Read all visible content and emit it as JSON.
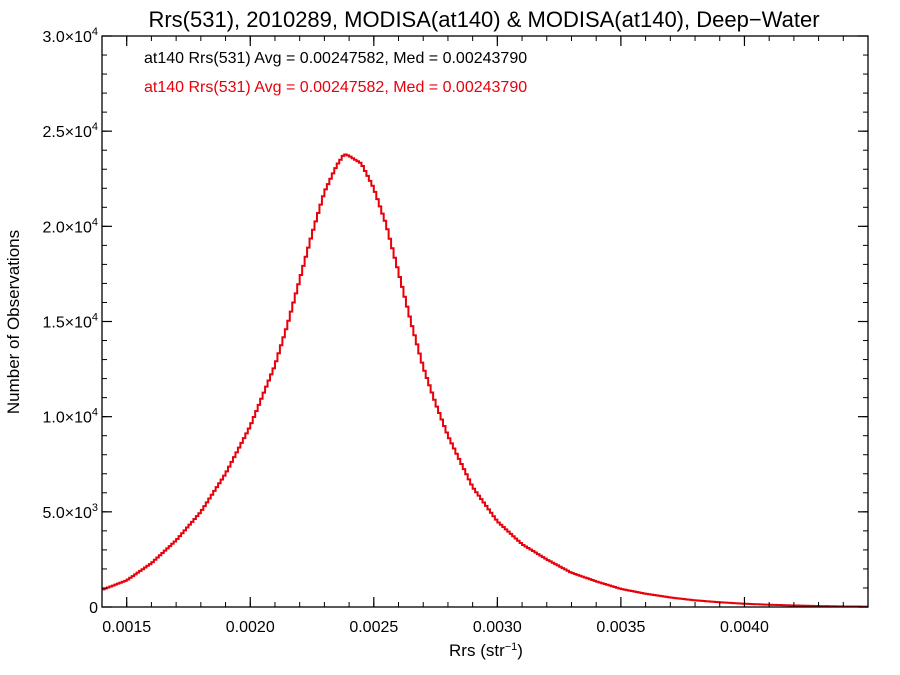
{
  "chart_data": {
    "type": "histogram",
    "title": "Rrs(531), 2010289, MODISA(at140) & MODISA(at140), Deep−Water",
    "xlabel": {
      "main": "Rrs (str",
      "sup": "−1",
      "close": ")"
    },
    "ylabel": "Number of Observations",
    "xlim": [
      0.0014,
      0.0045
    ],
    "ylim": [
      0,
      30000
    ],
    "x_ticks": [
      {
        "value": 0.0015,
        "label": "0.0015"
      },
      {
        "value": 0.002,
        "label": "0.0020"
      },
      {
        "value": 0.0025,
        "label": "0.0025"
      },
      {
        "value": 0.003,
        "label": "0.0030"
      },
      {
        "value": 0.0035,
        "label": "0.0035"
      },
      {
        "value": 0.004,
        "label": "0.0040"
      }
    ],
    "y_ticks": [
      {
        "value": 0,
        "mant": "0",
        "exp": ""
      },
      {
        "value": 5000,
        "mant": "5.0×10",
        "exp": "3"
      },
      {
        "value": 10000,
        "mant": "1.0×10",
        "exp": "4"
      },
      {
        "value": 15000,
        "mant": "1.5×10",
        "exp": "4"
      },
      {
        "value": 20000,
        "mant": "2.0×10",
        "exp": "4"
      },
      {
        "value": 25000,
        "mant": "2.5×10",
        "exp": "4"
      },
      {
        "value": 30000,
        "mant": "3.0×10",
        "exp": "4"
      }
    ],
    "legend": [
      {
        "text": "at140 Rrs(531) Avg = 0.00247582, Med = 0.00243790",
        "color": "#000000"
      },
      {
        "text": "at140 Rrs(531) Avg = 0.00247582, Med = 0.00243790",
        "color": "#e8000b"
      }
    ],
    "series": [
      {
        "color": "#e8000b",
        "points": [
          [
            0.0014,
            900
          ],
          [
            0.0015,
            1400
          ],
          [
            0.0016,
            2300
          ],
          [
            0.0017,
            3500
          ],
          [
            0.0018,
            5000
          ],
          [
            0.0019,
            7000
          ],
          [
            0.002,
            9500
          ],
          [
            0.0021,
            12700
          ],
          [
            0.00215,
            14800
          ],
          [
            0.0022,
            17200
          ],
          [
            0.00225,
            19600
          ],
          [
            0.0023,
            21800
          ],
          [
            0.00235,
            23200
          ],
          [
            0.00238,
            23800
          ],
          [
            0.0024,
            23700
          ],
          [
            0.00245,
            23300
          ],
          [
            0.0025,
            22000
          ],
          [
            0.00255,
            20100
          ],
          [
            0.0026,
            17600
          ],
          [
            0.00265,
            15000
          ],
          [
            0.0027,
            12600
          ],
          [
            0.00275,
            10700
          ],
          [
            0.0028,
            9000
          ],
          [
            0.0029,
            6300
          ],
          [
            0.003,
            4500
          ],
          [
            0.0031,
            3300
          ],
          [
            0.0032,
            2500
          ],
          [
            0.0033,
            1800
          ],
          [
            0.0034,
            1350
          ],
          [
            0.0035,
            950
          ],
          [
            0.0036,
            700
          ],
          [
            0.0037,
            500
          ],
          [
            0.0038,
            350
          ],
          [
            0.0039,
            250
          ],
          [
            0.004,
            170
          ],
          [
            0.0041,
            120
          ],
          [
            0.0042,
            80
          ],
          [
            0.0043,
            50
          ],
          [
            0.0044,
            30
          ],
          [
            0.0045,
            20
          ]
        ]
      }
    ]
  }
}
